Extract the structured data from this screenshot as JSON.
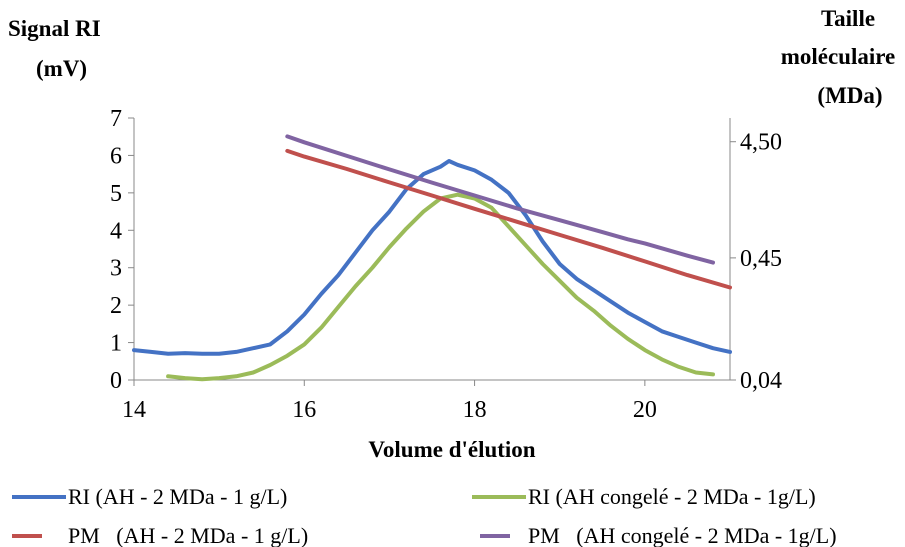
{
  "chart_data": {
    "type": "line",
    "left_axis_title_line1": "Signal RI",
    "left_axis_title_line2": "(mV)",
    "right_axis_title_line1": "Taille",
    "right_axis_title_line2": "moléculaire",
    "right_axis_title_line3": "(MDa)",
    "xlabel": "Volume d'élution",
    "xlim": [
      14,
      21
    ],
    "x_ticks": [
      "14",
      "16",
      "18",
      "20"
    ],
    "ylim": [
      0,
      7
    ],
    "y_ticks": [
      "0",
      "1",
      "2",
      "3",
      "4",
      "5",
      "6",
      "7"
    ],
    "y2_scale": "log",
    "y2lim": [
      0.04,
      7.2
    ],
    "y2_ticks": [
      "0,04",
      "0,45",
      "4,50"
    ],
    "grid": false,
    "legend_placement": "bottom",
    "series": [
      {
        "name": "RI (AH - 2 MDa - 1 g/L)",
        "axis": "left",
        "color": "#4472C4",
        "x": [
          14.0,
          14.2,
          14.4,
          14.6,
          14.8,
          15.0,
          15.2,
          15.4,
          15.6,
          15.8,
          16.0,
          16.2,
          16.4,
          16.6,
          16.8,
          17.0,
          17.2,
          17.4,
          17.6,
          17.7,
          17.8,
          18.0,
          18.2,
          18.4,
          18.6,
          18.8,
          19.0,
          19.2,
          19.4,
          19.6,
          19.8,
          20.0,
          20.2,
          20.4,
          20.6,
          20.8,
          21.0
        ],
        "y": [
          0.8,
          0.75,
          0.7,
          0.72,
          0.7,
          0.7,
          0.75,
          0.85,
          0.95,
          1.3,
          1.75,
          2.3,
          2.8,
          3.4,
          4.0,
          4.5,
          5.1,
          5.5,
          5.7,
          5.85,
          5.75,
          5.6,
          5.35,
          5.0,
          4.4,
          3.7,
          3.1,
          2.7,
          2.4,
          2.1,
          1.8,
          1.55,
          1.3,
          1.15,
          1.0,
          0.85,
          0.75
        ]
      },
      {
        "name": "RI (AH congelé - 2 MDa - 1g/L)",
        "axis": "left",
        "color": "#9BBB59",
        "x": [
          14.4,
          14.6,
          14.8,
          15.0,
          15.2,
          15.4,
          15.6,
          15.8,
          16.0,
          16.2,
          16.4,
          16.6,
          16.8,
          17.0,
          17.2,
          17.4,
          17.6,
          17.8,
          18.0,
          18.2,
          18.4,
          18.6,
          18.8,
          19.0,
          19.2,
          19.4,
          19.6,
          19.8,
          20.0,
          20.2,
          20.4,
          20.6,
          20.8
        ],
        "y": [
          0.1,
          0.05,
          0.02,
          0.05,
          0.1,
          0.2,
          0.4,
          0.65,
          0.95,
          1.4,
          1.95,
          2.5,
          3.0,
          3.55,
          4.05,
          4.5,
          4.85,
          4.95,
          4.85,
          4.6,
          4.1,
          3.6,
          3.1,
          2.65,
          2.2,
          1.85,
          1.45,
          1.1,
          0.8,
          0.55,
          0.35,
          0.2,
          0.15
        ]
      },
      {
        "name": "PM   (AH - 2 MDa - 1 g/L)",
        "axis": "right",
        "color": "#C0504D",
        "x": [
          15.8,
          16.0,
          16.5,
          17.0,
          17.5,
          18.0,
          18.5,
          19.0,
          19.5,
          20.0,
          20.5,
          21.0
        ],
        "y": [
          3.75,
          3.35,
          2.62,
          2.01,
          1.55,
          1.19,
          0.92,
          0.71,
          0.55,
          0.42,
          0.32,
          0.25
        ]
      },
      {
        "name": "PM   (AH congelé - 2 MDa - 1g/L)",
        "axis": "right",
        "color": "#8064A2",
        "x": [
          15.8,
          16.0,
          16.5,
          17.0,
          17.5,
          18.0,
          18.5,
          19.0,
          19.5,
          19.8,
          20.0,
          20.5,
          20.8
        ],
        "y": [
          5.0,
          4.45,
          3.4,
          2.6,
          2.0,
          1.55,
          1.2,
          0.95,
          0.75,
          0.65,
          0.6,
          0.47,
          0.41
        ]
      }
    ]
  }
}
